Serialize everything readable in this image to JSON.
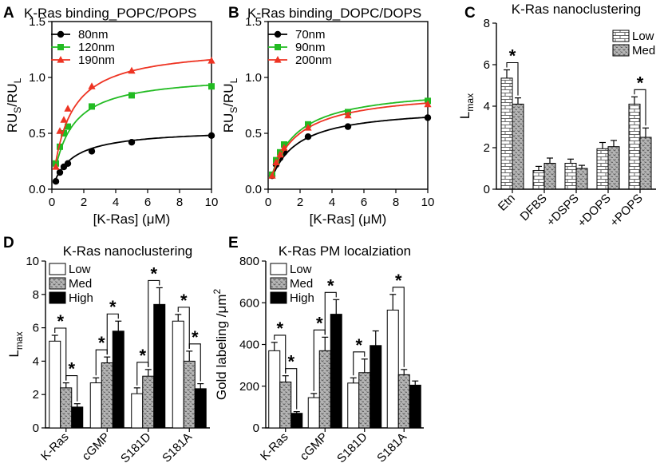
{
  "chart_data": [
    {
      "panel": "A",
      "type": "scatter",
      "title": "K-Ras binding_POPC/POPS",
      "xlabel": "[K-Ras] (μM)",
      "ylabel_main": "RU",
      "ylabel_sub1": "S",
      "ylabel_mid": "/RU",
      "ylabel_sub2": "L",
      "xlim": [
        0,
        10
      ],
      "ylim": [
        0,
        1.5
      ],
      "xticks": [
        0,
        2,
        4,
        6,
        8,
        10
      ],
      "yticks": [
        0.0,
        0.5,
        1.0,
        1.5
      ],
      "ytick_labels": [
        "0.0",
        "0.5",
        "1.0",
        "1.5"
      ],
      "fit": "hyperbolic",
      "series": [
        {
          "name": "80nm",
          "color": "#000000",
          "marker": "circle",
          "x": [
            0.25,
            0.5,
            0.75,
            1.0,
            2.5,
            5.0,
            10.0
          ],
          "y": [
            0.07,
            0.15,
            0.2,
            0.23,
            0.34,
            0.42,
            0.48
          ],
          "bmax": 0.54,
          "kd": 1.2
        },
        {
          "name": "120nm",
          "color": "#22bb22",
          "marker": "square",
          "x": [
            0.25,
            0.5,
            0.75,
            1.0,
            2.5,
            5.0,
            10.0
          ],
          "y": [
            0.23,
            0.38,
            0.5,
            0.56,
            0.74,
            0.84,
            0.92
          ],
          "bmax": 1.03,
          "kd": 1.05
        },
        {
          "name": "190nm",
          "color": "#ee3322",
          "marker": "triangle",
          "x": [
            0.25,
            0.5,
            0.75,
            1.0,
            2.5,
            5.0,
            10.0
          ],
          "y": [
            0.2,
            0.52,
            0.62,
            0.72,
            0.92,
            1.06,
            1.15
          ],
          "bmax": 1.28,
          "kd": 1.05
        }
      ]
    },
    {
      "panel": "B",
      "type": "scatter",
      "title": "K-Ras binding_DOPC/DOPS",
      "xlabel": "[K-Ras] (μM)",
      "ylabel_main": "RU",
      "ylabel_sub1": "S",
      "ylabel_mid": "/RU",
      "ylabel_sub2": "L",
      "xlim": [
        0,
        10
      ],
      "ylim": [
        0,
        1.5
      ],
      "xticks": [
        0,
        2,
        4,
        6,
        8,
        10
      ],
      "yticks": [
        0.0,
        0.5,
        1.0,
        1.5
      ],
      "ytick_labels": [
        "0.0",
        "0.5",
        "1.0",
        "1.5"
      ],
      "fit": "hyperbolic",
      "series": [
        {
          "name": "70nm",
          "color": "#000000",
          "marker": "circle",
          "x": [
            0.25,
            0.5,
            0.75,
            1.0,
            2.5,
            5.0,
            10.0
          ],
          "y": [
            0.12,
            0.22,
            0.28,
            0.33,
            0.47,
            0.56,
            0.64
          ],
          "bmax": 0.74,
          "kd": 1.5
        },
        {
          "name": "90nm",
          "color": "#22bb22",
          "marker": "square",
          "x": [
            0.25,
            0.5,
            0.75,
            1.0,
            2.5,
            5.0,
            10.0
          ],
          "y": [
            0.13,
            0.26,
            0.33,
            0.4,
            0.58,
            0.69,
            0.79
          ],
          "bmax": 0.92,
          "kd": 1.5
        },
        {
          "name": "200nm",
          "color": "#ee3322",
          "marker": "triangle",
          "x": [
            0.25,
            0.5,
            0.75,
            1.0,
            2.5,
            5.0,
            10.0
          ],
          "y": [
            0.12,
            0.24,
            0.31,
            0.37,
            0.55,
            0.66,
            0.76
          ],
          "bmax": 0.89,
          "kd": 1.55
        }
      ]
    },
    {
      "panel": "C",
      "type": "bar",
      "title": "K-Ras nanoclustering",
      "ylabel_main": "L",
      "ylabel_sub": "max",
      "ylim": [
        0,
        8
      ],
      "yticks": [
        0,
        2,
        4,
        6,
        8
      ],
      "categories": [
        "Etn",
        "DFBS",
        "+DSPS",
        "+DOPS",
        "+POPS"
      ],
      "series": [
        {
          "name": "Low",
          "pattern": "brick",
          "values": [
            5.35,
            0.9,
            1.25,
            1.95,
            4.1
          ],
          "errors": [
            0.4,
            0.2,
            0.2,
            0.3,
            0.35
          ]
        },
        {
          "name": "Med",
          "pattern": "dots",
          "values": [
            4.1,
            1.25,
            1.0,
            2.05,
            2.5
          ],
          "errors": [
            0.3,
            0.25,
            0.15,
            0.3,
            0.45
          ]
        }
      ],
      "significance": [
        {
          "category": 0,
          "from": 0,
          "to": 1,
          "label": "*"
        },
        {
          "category": 4,
          "from": 0,
          "to": 1,
          "label": "*"
        }
      ]
    },
    {
      "panel": "D",
      "type": "bar",
      "title": "K-Ras nanoclustering",
      "ylabel_main": "L",
      "ylabel_sub": "max",
      "ylim": [
        0,
        10
      ],
      "yticks": [
        0,
        2,
        4,
        6,
        8,
        10
      ],
      "categories": [
        "K-Ras",
        "cGMP",
        "S181D",
        "S181A"
      ],
      "series": [
        {
          "name": "Low",
          "pattern": "white",
          "values": [
            5.2,
            2.7,
            2.05,
            6.4
          ],
          "errors": [
            0.35,
            0.3,
            0.35,
            0.4
          ]
        },
        {
          "name": "Med",
          "pattern": "dots",
          "values": [
            2.4,
            3.9,
            3.1,
            4.0
          ],
          "errors": [
            0.3,
            0.35,
            0.4,
            0.6
          ]
        },
        {
          "name": "High",
          "pattern": "black",
          "values": [
            1.25,
            5.8,
            7.4,
            2.35
          ],
          "errors": [
            0.2,
            0.6,
            1.0,
            0.3
          ]
        }
      ],
      "significance": [
        {
          "category": 0,
          "from": 0,
          "to": 1,
          "label": "*"
        },
        {
          "category": 0,
          "from": 1,
          "to": 2,
          "label": "*"
        },
        {
          "category": 1,
          "from": 0,
          "to": 1,
          "label": "*"
        },
        {
          "category": 1,
          "from": 1,
          "to": 2,
          "label": "*"
        },
        {
          "category": 2,
          "from": 0,
          "to": 1,
          "label": "*"
        },
        {
          "category": 2,
          "from": 1,
          "to": 2,
          "label": "*"
        },
        {
          "category": 3,
          "from": 0,
          "to": 1,
          "label": "*"
        },
        {
          "category": 3,
          "from": 1,
          "to": 2,
          "label": "*"
        }
      ]
    },
    {
      "panel": "E",
      "type": "bar",
      "title": "K-Ras PM localziation",
      "ylabel_main": "Gold labeling /μm",
      "ylabel_sup": "2",
      "ylim": [
        0,
        800
      ],
      "yticks": [
        0,
        200,
        400,
        600,
        800
      ],
      "categories": [
        "K-Ras",
        "cGMP",
        "S181D",
        "S181A"
      ],
      "series": [
        {
          "name": "Low",
          "pattern": "white",
          "values": [
            370,
            145,
            215,
            565
          ],
          "errors": [
            40,
            20,
            25,
            75
          ]
        },
        {
          "name": "Med",
          "pattern": "dots",
          "values": [
            220,
            370,
            265,
            255
          ],
          "errors": [
            30,
            65,
            65,
            25
          ]
        },
        {
          "name": "High",
          "pattern": "black",
          "values": [
            70,
            545,
            395,
            205
          ],
          "errors": [
            8,
            70,
            70,
            20
          ]
        }
      ],
      "significance": [
        {
          "category": 0,
          "from": 0,
          "to": 1,
          "label": "*"
        },
        {
          "category": 0,
          "from": 1,
          "to": 2,
          "label": "*"
        },
        {
          "category": 1,
          "from": 0,
          "to": 1,
          "label": "*"
        },
        {
          "category": 1,
          "from": 1,
          "to": 2,
          "label": "*"
        },
        {
          "category": 2,
          "from": 0,
          "to": 1,
          "label": "*"
        },
        {
          "category": 3,
          "from": 0,
          "to": 1,
          "label": "*"
        }
      ]
    }
  ]
}
